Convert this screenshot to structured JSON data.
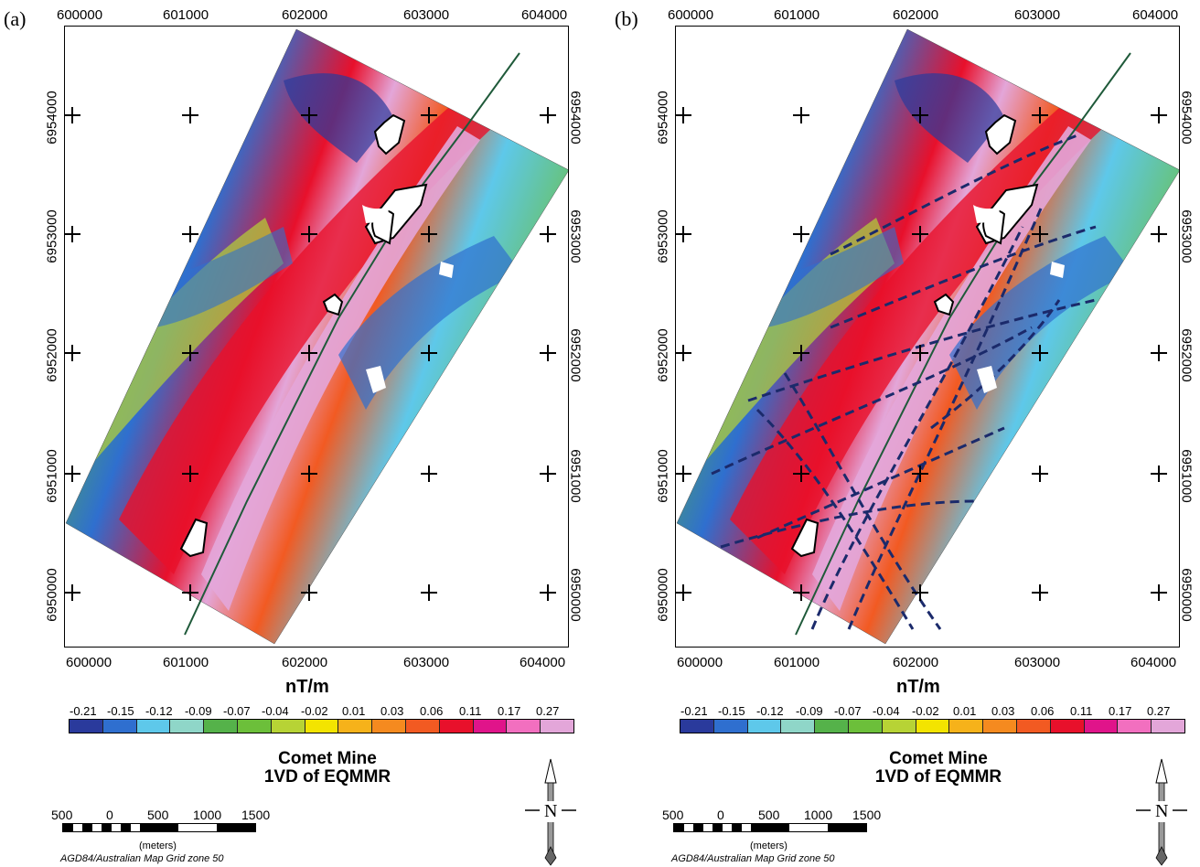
{
  "panels": [
    {
      "label": "(a)",
      "x_ticks": [
        "600000",
        "601000",
        "602000",
        "603000",
        "604000"
      ],
      "y_ticks": [
        "6954000",
        "6953000",
        "6952000",
        "6951000",
        "6950000"
      ],
      "unit_label": "nT/m",
      "legend_values": [
        "-0.21",
        "-0.15",
        "-0.12",
        "-0.09",
        "-0.07",
        "-0.04",
        "-0.02",
        "0.01",
        "0.03",
        "0.06",
        "0.11",
        "0.17",
        "0.27"
      ],
      "title_line1": "Comet Mine",
      "title_line2": "1VD of EQMMR",
      "scale_labels": [
        "500",
        "0",
        "500",
        "1000",
        "1500"
      ],
      "scale_unit": "(meters)",
      "projection": "AGD84/Australian Map Grid zone 50",
      "north_label": "N",
      "show_lineaments": false
    },
    {
      "label": "(b)",
      "x_ticks": [
        "600000",
        "601000",
        "602000",
        "603000",
        "604000"
      ],
      "y_ticks": [
        "6954000",
        "6953000",
        "6952000",
        "6951000",
        "6950000"
      ],
      "unit_label": "nT/m",
      "legend_values": [
        "-0.21",
        "-0.15",
        "-0.12",
        "-0.09",
        "-0.07",
        "-0.04",
        "-0.02",
        "0.01",
        "0.03",
        "0.06",
        "0.11",
        "0.17",
        "0.27"
      ],
      "title_line1": "Comet Mine",
      "title_line2": "1VD of EQMMR",
      "scale_labels": [
        "500",
        "0",
        "500",
        "1000",
        "1500"
      ],
      "scale_unit": "(meters)",
      "projection": "AGD84/Australian Map Grid zone 50",
      "north_label": "N",
      "show_lineaments": true
    }
  ],
  "colors": {
    "palette": [
      "#2a3a9c",
      "#2f6fcf",
      "#5ec8ea",
      "#8fd6c8",
      "#55b24a",
      "#6cbf3a",
      "#b7d335",
      "#f3e400",
      "#f6b21a",
      "#f58a1f",
      "#f25a22",
      "#e8102b",
      "#e0148a",
      "#f26fbf",
      "#e3a6d9"
    ],
    "lineament": "#1b2a6b",
    "road": "#1f5a3a"
  }
}
